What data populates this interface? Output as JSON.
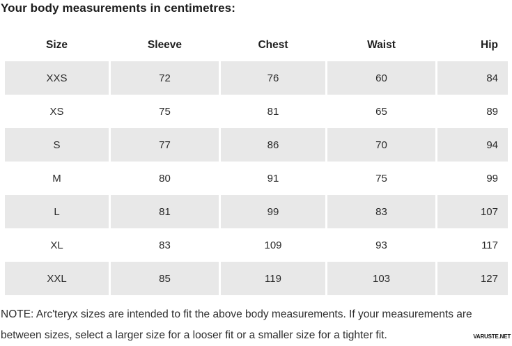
{
  "title": "Your body measurements in centimetres:",
  "table": {
    "headers": [
      "Size",
      "Sleeve",
      "Chest",
      "Waist",
      "Hip"
    ],
    "rows": [
      [
        "XXS",
        "72",
        "76",
        "60",
        "84"
      ],
      [
        "XS",
        "75",
        "81",
        "65",
        "89"
      ],
      [
        "S",
        "77",
        "86",
        "70",
        "94"
      ],
      [
        "M",
        "80",
        "91",
        "75",
        "99"
      ],
      [
        "L",
        "81",
        "99",
        "83",
        "107"
      ],
      [
        "XL",
        "83",
        "109",
        "93",
        "117"
      ],
      [
        "XXL",
        "85",
        "119",
        "103",
        "127"
      ]
    ]
  },
  "note": "NOTE: Arc'teryx sizes are intended to fit the above body measurements. If your measurements are between sizes, select a larger size for a looser fit or a smaller size for a tighter fit.",
  "watermark": "VARUSTE.NET",
  "colors": {
    "row_alt_bg": "#e8e8e8",
    "text": "#2a2a2a",
    "background": "#ffffff"
  },
  "chart_data": {
    "type": "table",
    "title": "Your body measurements in centimetres:",
    "columns": [
      "Size",
      "Sleeve",
      "Chest",
      "Waist",
      "Hip"
    ],
    "rows": [
      {
        "size": "XXS",
        "sleeve": 72,
        "chest": 76,
        "waist": 60,
        "hip": 84
      },
      {
        "size": "XS",
        "sleeve": 75,
        "chest": 81,
        "waist": 65,
        "hip": 89
      },
      {
        "size": "S",
        "sleeve": 77,
        "chest": 86,
        "waist": 70,
        "hip": 94
      },
      {
        "size": "M",
        "sleeve": 80,
        "chest": 91,
        "waist": 75,
        "hip": 99
      },
      {
        "size": "L",
        "sleeve": 81,
        "chest": 99,
        "waist": 83,
        "hip": 107
      },
      {
        "size": "XL",
        "sleeve": 83,
        "chest": 109,
        "waist": 93,
        "hip": 117
      },
      {
        "size": "XXL",
        "sleeve": 85,
        "chest": 119,
        "waist": 103,
        "hip": 127
      }
    ],
    "note": "NOTE: Arc'teryx sizes are intended to fit the above body measurements. If your measurements are between sizes, select a larger size for a looser fit or a smaller size for a tighter fit.",
    "layout_hints": {
      "alternating_row_shading": "rows XXS, S, L, XXL shaded light gray",
      "last_column_alignment": "right",
      "other_columns_alignment": "center",
      "grid": "off"
    }
  }
}
